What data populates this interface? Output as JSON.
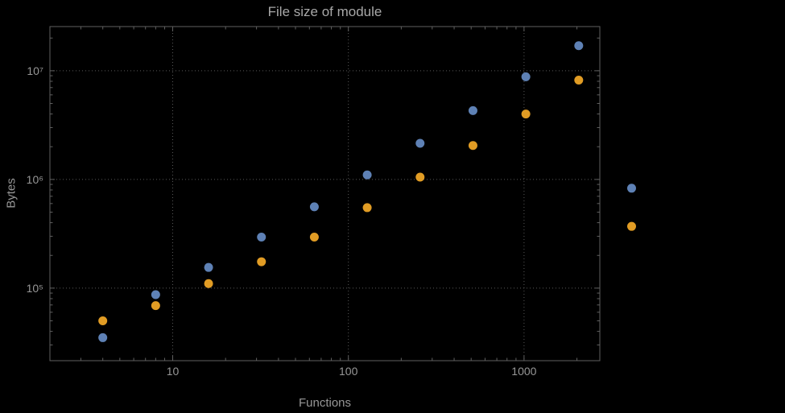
{
  "chart_data": {
    "type": "scatter",
    "title": "File size of module",
    "xlabel": "Functions",
    "ylabel": "Bytes",
    "x_scale": "log",
    "y_scale": "log",
    "xlim": [
      2,
      2700
    ],
    "ylim": [
      21500,
      25500000
    ],
    "grid": "dotted lines at major ticks only",
    "legend": "none",
    "x_ticks": [
      {
        "value": 10,
        "label": "10"
      },
      {
        "value": 100,
        "label": "100"
      },
      {
        "value": 1000,
        "label": "1000"
      }
    ],
    "y_ticks": [
      {
        "value": 100000,
        "label": "10⁵"
      },
      {
        "value": 1000000,
        "label": "10⁶"
      },
      {
        "value": 10000000,
        "label": "10⁷"
      }
    ],
    "x": [
      4,
      8,
      16,
      32,
      64,
      128,
      256,
      512,
      1024,
      2048,
      4096
    ],
    "series": [
      {
        "name": "series-blue",
        "color": "#5e81b5",
        "values": [
          35000,
          87000,
          155000,
          295000,
          560000,
          1100000,
          2150000,
          4300000,
          8800000,
          17000000,
          830000
        ]
      },
      {
        "name": "series-orange",
        "color": "#e19c24",
        "values": [
          50000,
          69000,
          110000,
          175000,
          295000,
          550000,
          1050000,
          2050000,
          4000000,
          8200000,
          370000
        ]
      }
    ],
    "colors": {
      "background": "#000000",
      "frame": "#606060",
      "grid": "#585858",
      "tick_text": "#979797",
      "axis_text": "#979797",
      "title_text": "#a8a8a8"
    }
  }
}
